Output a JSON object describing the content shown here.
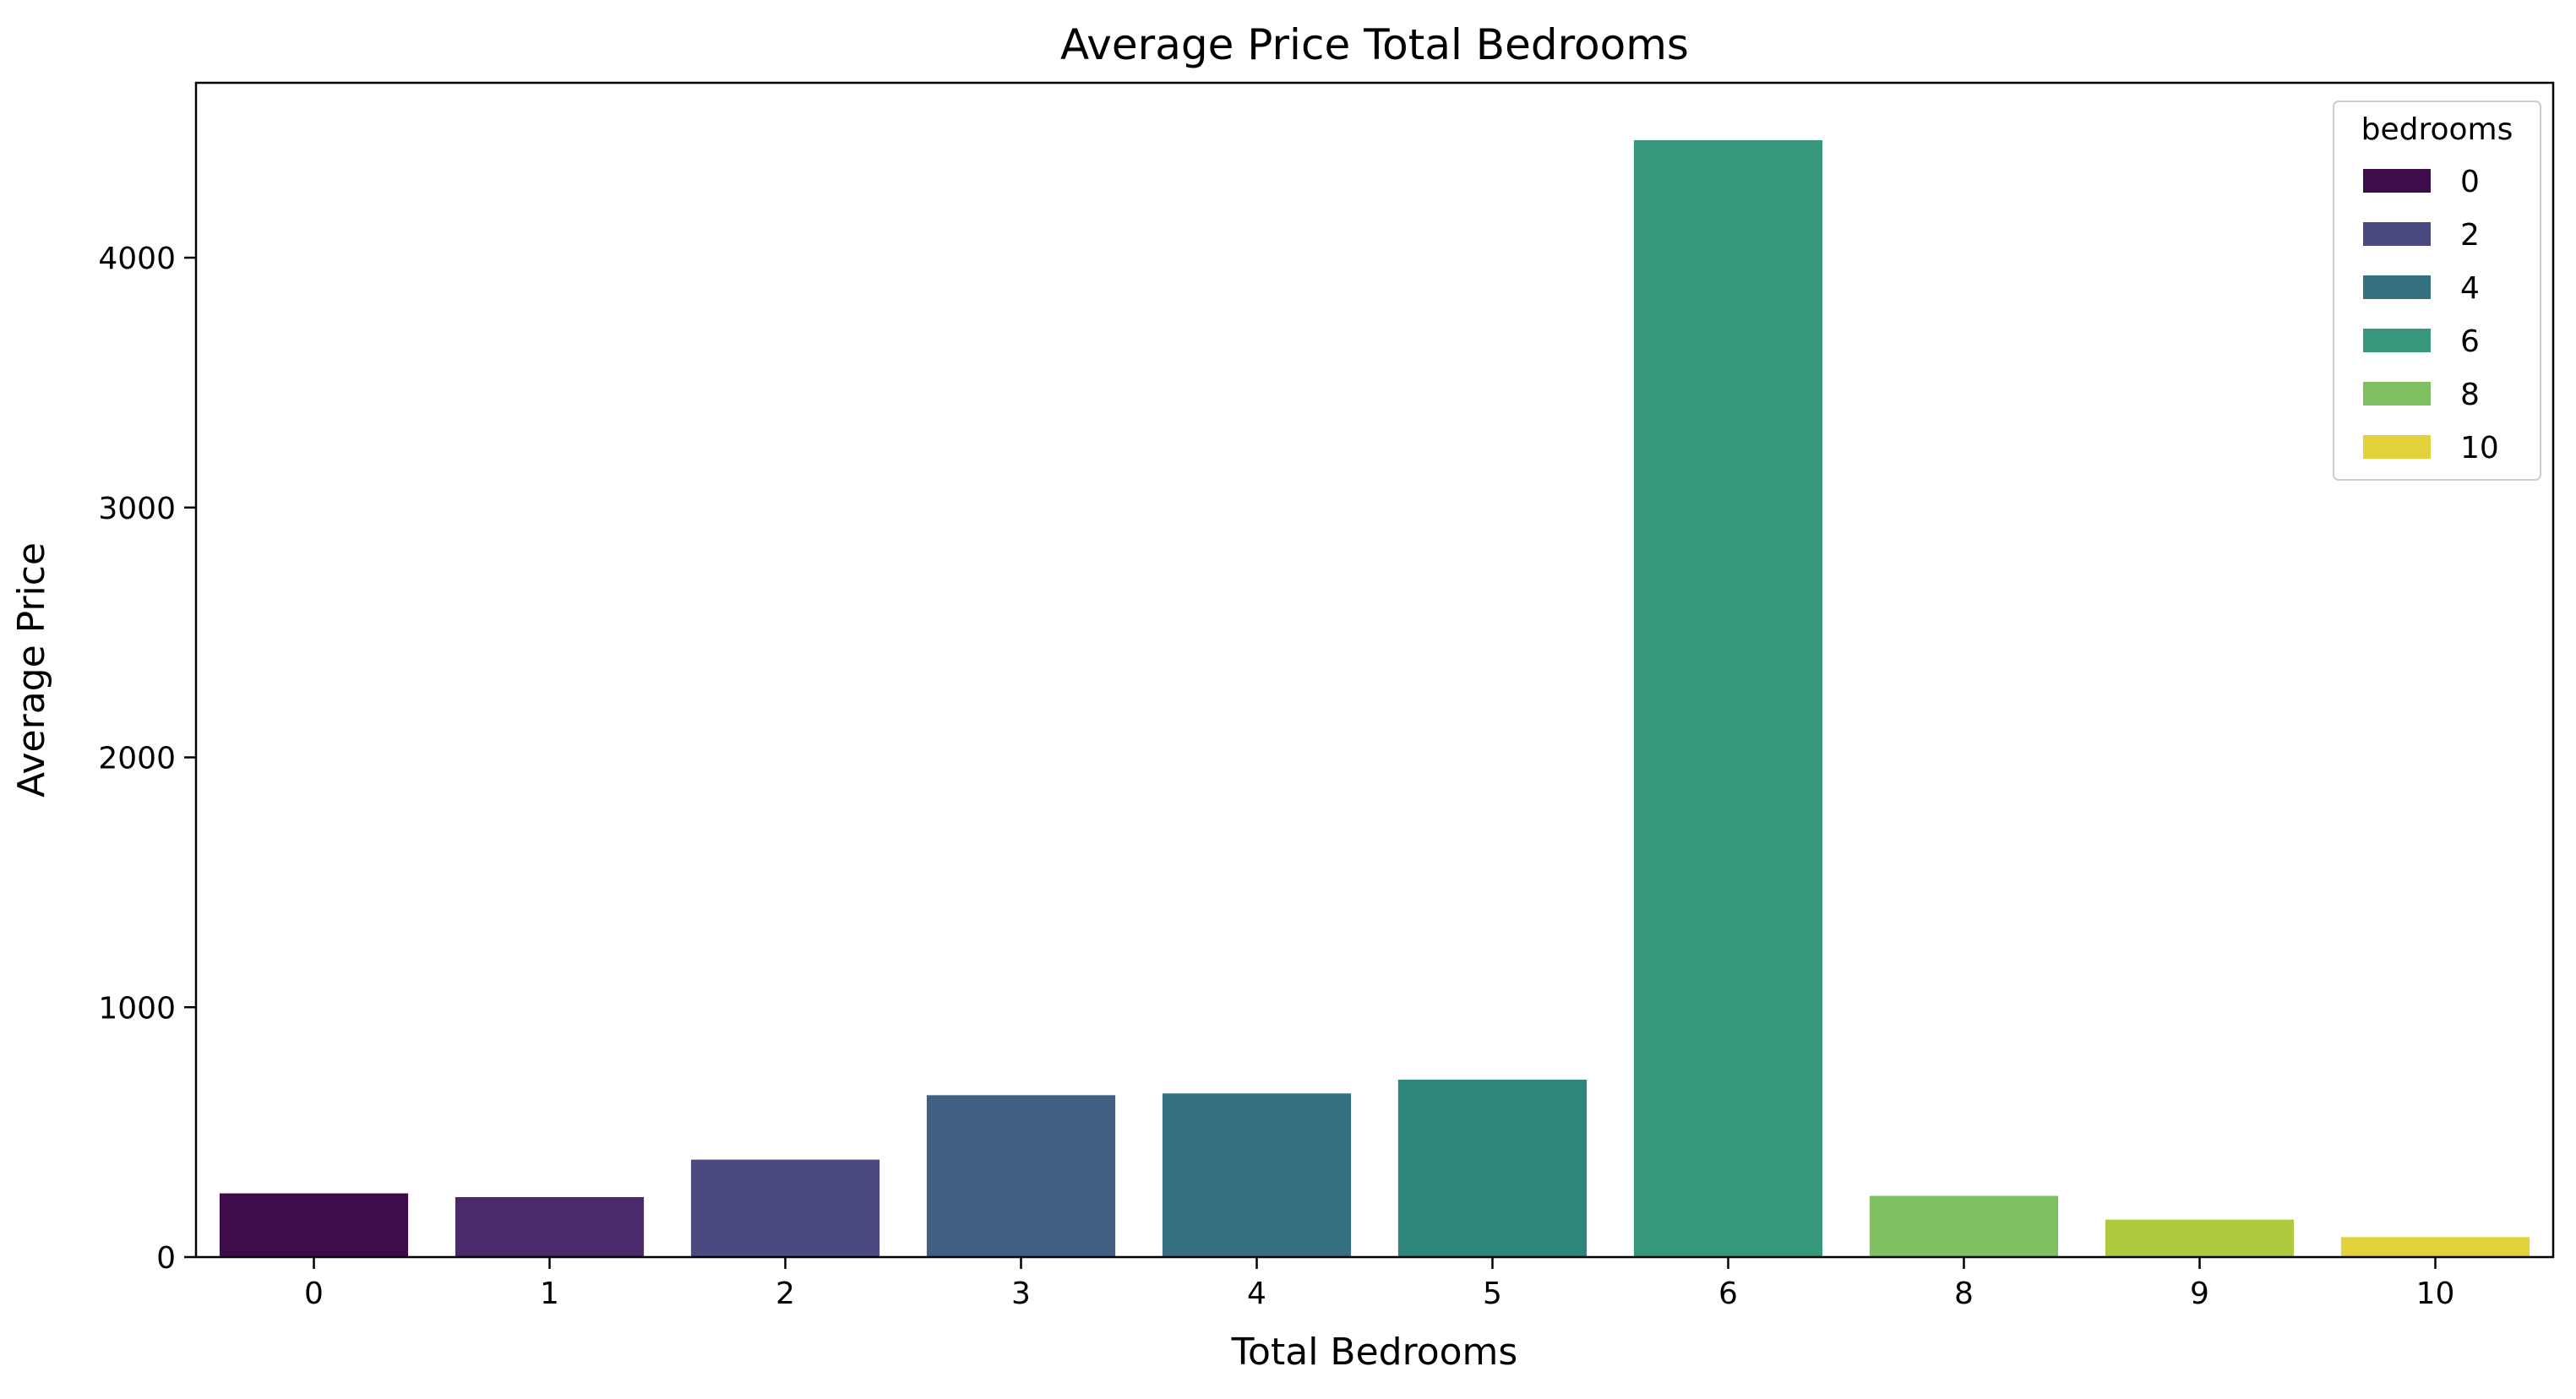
{
  "chart_data": {
    "type": "bar",
    "title": "Average Price Total Bedrooms",
    "xlabel": "Total Bedrooms",
    "ylabel": "Average Price",
    "categories": [
      "0",
      "1",
      "2",
      "3",
      "4",
      "5",
      "6",
      "8",
      "9",
      "10"
    ],
    "values": [
      255,
      240,
      390,
      648,
      655,
      710,
      4470,
      245,
      150,
      80
    ],
    "bar_colors": [
      "#3f0c4a",
      "#4a2a6a",
      "#4a4a80",
      "#405f82",
      "#34707f",
      "#2e857c",
      "#35977c",
      "#7fc160",
      "#adc93e",
      "#e3d23c"
    ],
    "ylim": [
      0,
      4700
    ],
    "yticks": [
      0,
      1000,
      2000,
      3000,
      4000
    ],
    "grid": false,
    "legend": {
      "title": "bedrooms",
      "placement": "top-right",
      "entries": [
        {
          "label": "0",
          "color": "#3f0c4a"
        },
        {
          "label": "2",
          "color": "#4a4a80"
        },
        {
          "label": "4",
          "color": "#34707f"
        },
        {
          "label": "6",
          "color": "#35977c"
        },
        {
          "label": "8",
          "color": "#7fc160"
        },
        {
          "label": "10",
          "color": "#e3d23c"
        }
      ]
    }
  }
}
